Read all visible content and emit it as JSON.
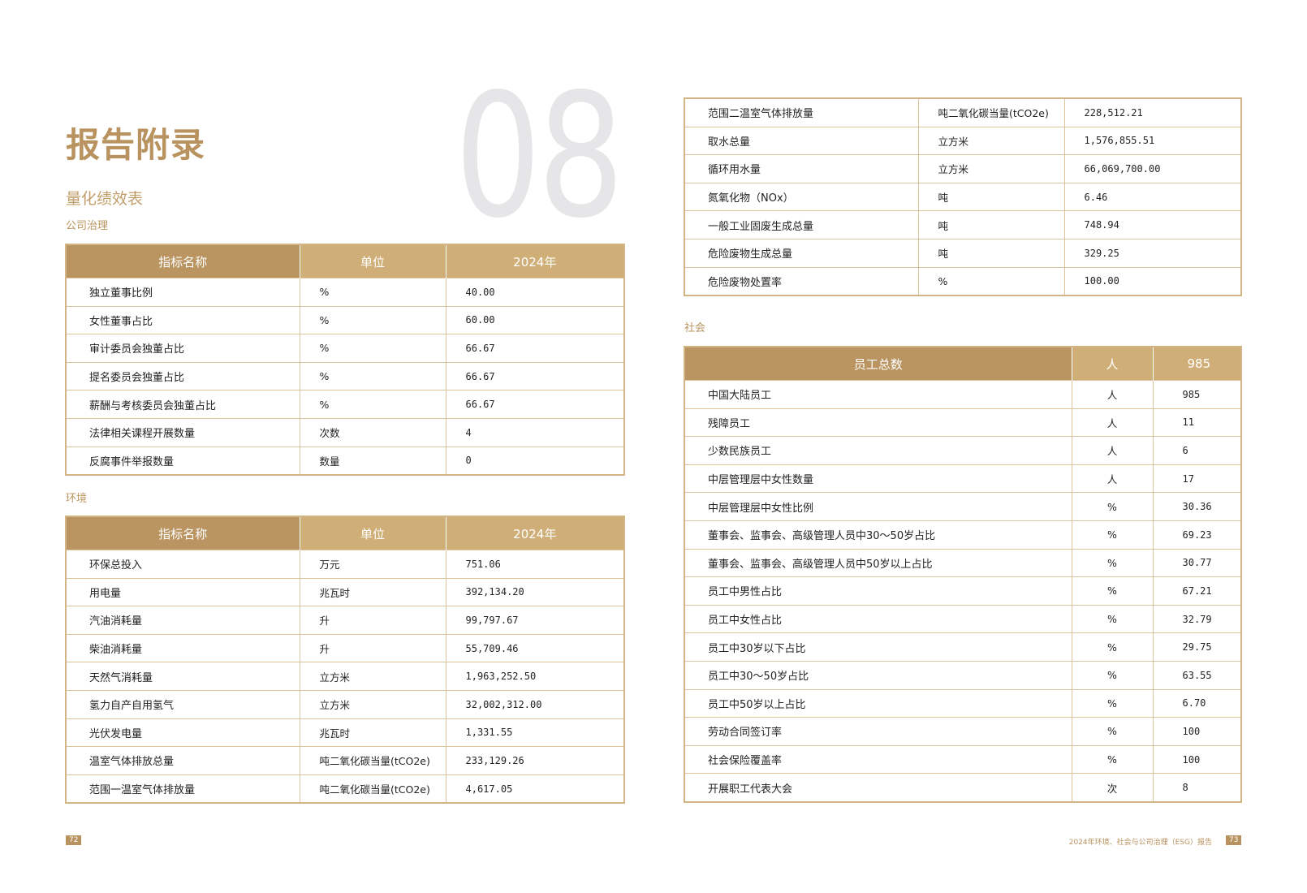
{
  "header": {
    "title": "报告附录",
    "chapter_number": "08",
    "subtitle": "量化绩效表"
  },
  "governance": {
    "label": "公司治理",
    "columns": [
      "指标名称",
      "单位",
      "2024年"
    ],
    "rows": [
      [
        "独立董事比例",
        "%",
        "40.00"
      ],
      [
        "女性董事占比",
        "%",
        "60.00"
      ],
      [
        "审计委员会独董占比",
        "%",
        "66.67"
      ],
      [
        "提名委员会独董占比",
        "%",
        "66.67"
      ],
      [
        "薪酬与考核委员会独董占比",
        "%",
        "66.67"
      ],
      [
        "法律相关课程开展数量",
        "次数",
        "4"
      ],
      [
        "反腐事件举报数量",
        "数量",
        "0"
      ]
    ]
  },
  "environment": {
    "label": "环境",
    "columns": [
      "指标名称",
      "单位",
      "2024年"
    ],
    "rows": [
      [
        "环保总投入",
        "万元",
        "751.06"
      ],
      [
        "用电量",
        "兆瓦时",
        "392,134.20"
      ],
      [
        "汽油消耗量",
        "升",
        "99,797.67"
      ],
      [
        "柴油消耗量",
        "升",
        "55,709.46"
      ],
      [
        "天然气消耗量",
        "立方米",
        "1,963,252.50"
      ],
      [
        "氢力自产自用氢气",
        "立方米",
        "32,002,312.00"
      ],
      [
        "光伏发电量",
        "兆瓦时",
        "1,331.55"
      ],
      [
        "温室气体排放总量",
        "吨二氧化碳当量(tCO2e)",
        "233,129.26"
      ],
      [
        "范围一温室气体排放量",
        "吨二氧化碳当量(tCO2e)",
        "4,617.05"
      ]
    ],
    "continued_rows": [
      [
        "范围二温室气体排放量",
        "吨二氧化碳当量(tCO2e)",
        "228,512.21"
      ],
      [
        "取水总量",
        "立方米",
        "1,576,855.51"
      ],
      [
        "循环用水量",
        "立方米",
        "66,069,700.00"
      ],
      [
        "氮氧化物（NOx）",
        "吨",
        "6.46"
      ],
      [
        "一般工业固废生成总量",
        "吨",
        "748.94"
      ],
      [
        "危险废物生成总量",
        "吨",
        "329.25"
      ],
      [
        "危险废物处置率",
        "%",
        "100.00"
      ]
    ]
  },
  "social": {
    "label": "社会",
    "columns": [
      "员工总数",
      "人",
      "985"
    ],
    "rows": [
      [
        "中国大陆员工",
        "人",
        "985"
      ],
      [
        "残障员工",
        "人",
        "11"
      ],
      [
        "少数民族员工",
        "人",
        "6"
      ],
      [
        "中层管理层中女性数量",
        "人",
        "17"
      ],
      [
        "中层管理层中女性比例",
        "%",
        "30.36"
      ],
      [
        "董事会、监事会、高级管理人员中30～50岁占比",
        "%",
        "69.23"
      ],
      [
        "董事会、监事会、高级管理人员中50岁以上占比",
        "%",
        "30.77"
      ],
      [
        "员工中男性占比",
        "%",
        "67.21"
      ],
      [
        "员工中女性占比",
        "%",
        "32.79"
      ],
      [
        "员工中30岁以下占比",
        "%",
        "29.75"
      ],
      [
        "员工中30～50岁占比",
        "%",
        "63.55"
      ],
      [
        "员工中50岁以上占比",
        "%",
        "6.70"
      ],
      [
        "劳动合同签订率",
        "%",
        "100"
      ],
      [
        "社会保险覆盖率",
        "%",
        "100"
      ],
      [
        "开展职工代表大会",
        "次",
        "8"
      ]
    ]
  },
  "footer": {
    "left_page": "72",
    "right_page": "73",
    "report_title": "2024年环境、社会与公司治理（ESG）报告"
  },
  "colors": {
    "accent": "#b8925f",
    "header_light": "#cfae78",
    "header_dark": "#ba9461",
    "chapter_number": "#e6e6e8"
  }
}
